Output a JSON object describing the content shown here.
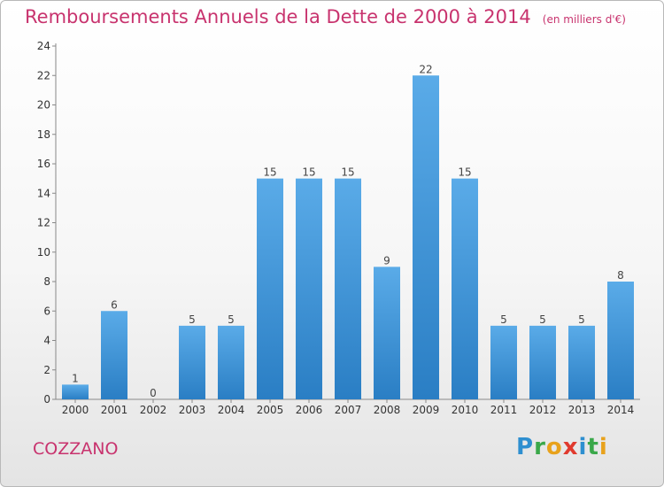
{
  "header": {
    "title": "Remboursements Annuels de la Dette de 2000 à 2014",
    "subtitle": "(en milliers d'€)"
  },
  "commune": "COZZANO",
  "logo": {
    "text": "Proxiti",
    "letters": [
      {
        "ch": "P",
        "color": "#2e8fd0"
      },
      {
        "ch": "r",
        "color": "#3aa84a"
      },
      {
        "ch": "o",
        "color": "#e8a21c"
      },
      {
        "ch": "x",
        "color": "#e03a2e"
      },
      {
        "ch": "i",
        "color": "#2e8fd0"
      },
      {
        "ch": "t",
        "color": "#3aa84a"
      },
      {
        "ch": "i",
        "color": "#e8a21c"
      }
    ]
  },
  "chart_data": {
    "type": "bar",
    "categories": [
      "2000",
      "2001",
      "2002",
      "2003",
      "2004",
      "2005",
      "2006",
      "2007",
      "2008",
      "2009",
      "2010",
      "2011",
      "2012",
      "2013",
      "2014"
    ],
    "values": [
      1,
      6,
      0,
      5,
      5,
      15,
      15,
      15,
      9,
      22,
      15,
      5,
      5,
      5,
      8
    ],
    "ylim": [
      0,
      24
    ],
    "yticks": [
      0,
      2,
      4,
      6,
      8,
      10,
      12,
      14,
      16,
      18,
      20,
      22,
      24
    ],
    "grid": false,
    "bar_color_top": "#5aabe8",
    "bar_color_bottom": "#2a7ec4"
  }
}
